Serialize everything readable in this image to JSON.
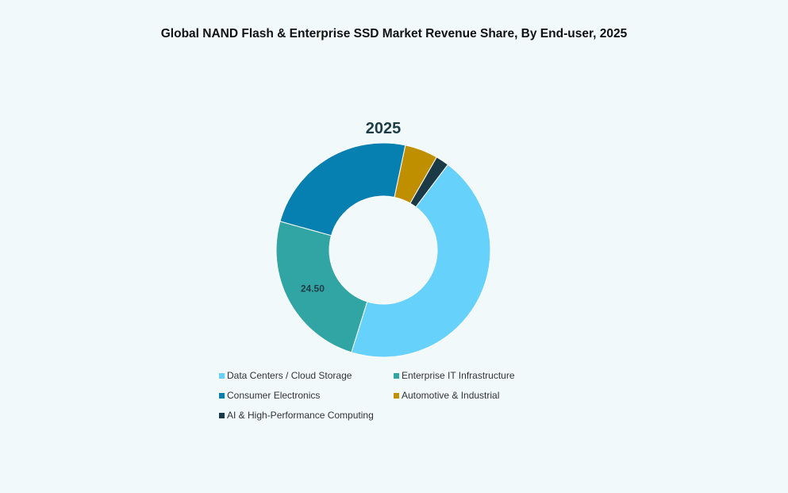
{
  "chart_data": {
    "type": "pie",
    "title": "Global NAND Flash & Enterprise SSD Market Revenue Share, By End-user, 2025",
    "subtitle": "2025",
    "categories": [
      "Data Centers / Cloud Storage",
      "Enterprise IT Infrastructure",
      "Consumer Electronics",
      "Automotive & Industrial",
      "AI & High-Performance Computing"
    ],
    "values": [
      44.5,
      24.5,
      24.0,
      5.0,
      2.0
    ],
    "data_labels": [
      "",
      "24.50",
      "",
      "",
      ""
    ],
    "colors": [
      "#66d1fb",
      "#31a5a3",
      "#0680b0",
      "#c08f00",
      "#1a3a47"
    ],
    "donut": true,
    "legend_position": "bottom"
  }
}
